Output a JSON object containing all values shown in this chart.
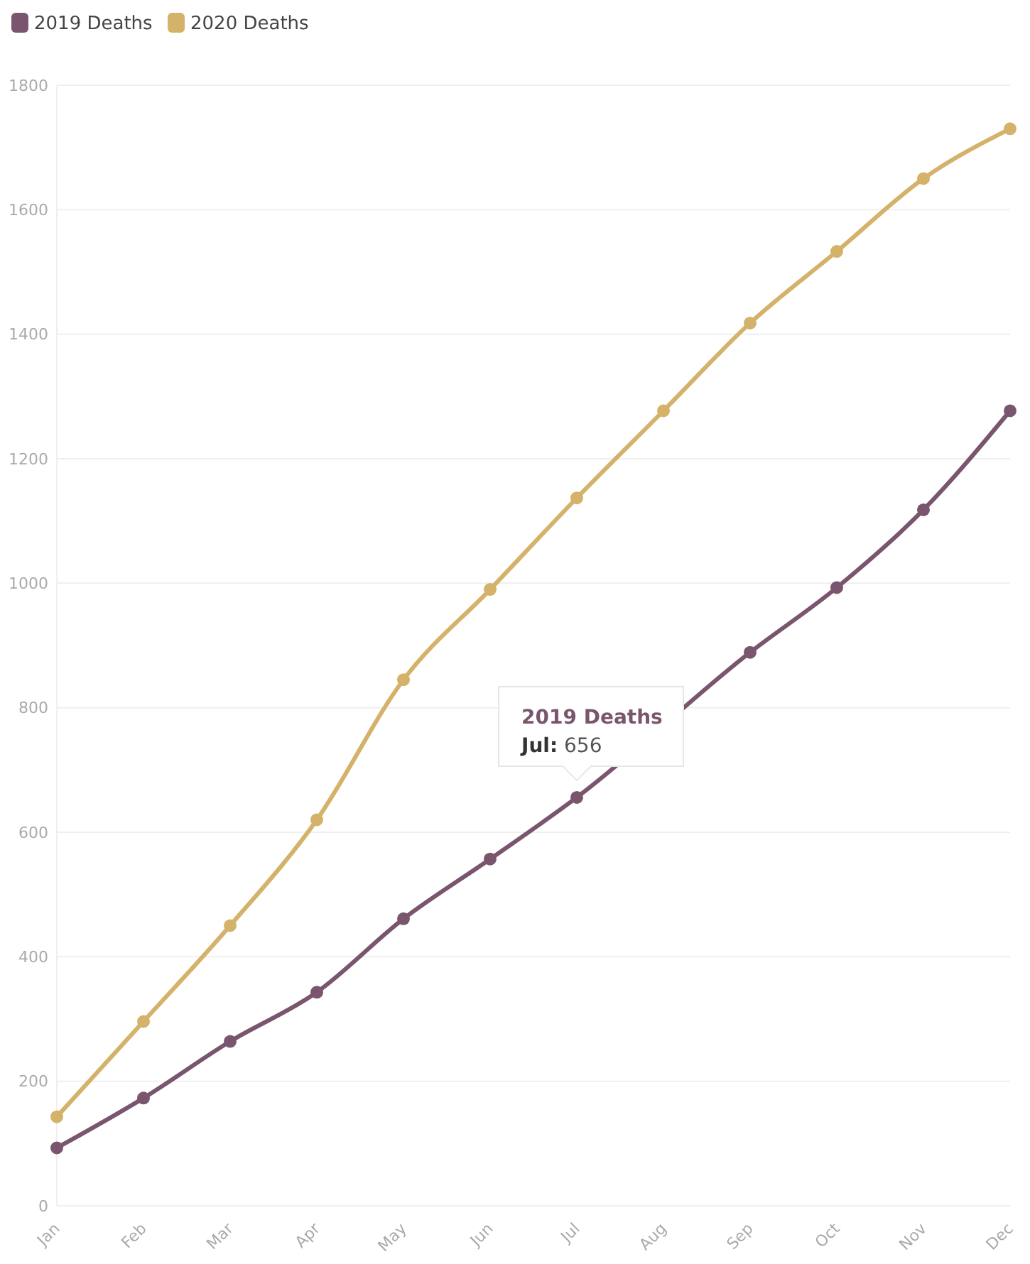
{
  "chart_data": {
    "type": "line",
    "categories": [
      "Jan",
      "Feb",
      "Mar",
      "Apr",
      "May",
      "Jun",
      "Jul",
      "Aug",
      "Sep",
      "Oct",
      "Nov",
      "Dec"
    ],
    "series": [
      {
        "name": "2019 Deaths",
        "color": "#7a566e",
        "values": [
          93,
          173,
          264,
          343,
          461,
          557,
          656,
          null,
          889,
          993,
          1118,
          1277
        ]
      },
      {
        "name": "2020 Deaths",
        "color": "#d4b26a",
        "values": [
          143,
          296,
          450,
          620,
          845,
          990,
          1137,
          1277,
          1418,
          1533,
          1650,
          1730
        ]
      }
    ],
    "ylim": [
      0,
      1800
    ],
    "yticks": [
      0,
      200,
      400,
      600,
      800,
      1000,
      1200,
      1400,
      1600,
      1800
    ],
    "grid": "y",
    "legend": "top left",
    "marker": "circle",
    "line_style": "solid",
    "annotations": [
      {
        "text": "2019 Deaths\nJul: 656",
        "x": "Jul",
        "y": 656
      }
    ]
  }
}
